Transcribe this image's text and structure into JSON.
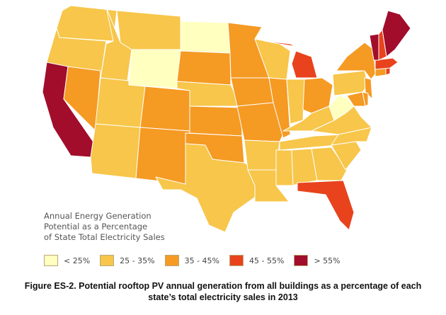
{
  "legend": {
    "title_lines": [
      "Annual Energy Generation",
      "Potential as a Percentage",
      "of State Total Electricity Sales"
    ],
    "bins": [
      {
        "label": "< 25%",
        "color": "#ffffc0"
      },
      {
        "label": "25 - 35%",
        "color": "#f7c64a"
      },
      {
        "label": "35 - 45%",
        "color": "#f59a23"
      },
      {
        "label": "45 - 55%",
        "color": "#e8431d"
      },
      {
        "label": "> 55%",
        "color": "#a10d2b"
      }
    ]
  },
  "caption": {
    "line1": "Figure ES-2. Potential rooftop PV annual generation from all buildings as a percentage of each",
    "line2": "state’s total electricity sales in 2013"
  },
  "states": {
    "washington": 1,
    "oregon": 1,
    "california": 4,
    "idaho": 1,
    "nevada": 2,
    "montana": 1,
    "wyoming": 0,
    "utah": 1,
    "arizona": 1,
    "colorado": 2,
    "new-mexico": 2,
    "north-dakota": 0,
    "south-dakota": 2,
    "nebraska": 1,
    "kansas": 2,
    "oklahoma": 2,
    "texas": 1,
    "minnesota": 2,
    "iowa": 2,
    "missouri": 2,
    "arkansas": 1,
    "louisiana": 1,
    "wisconsin": 1,
    "illinois": 2,
    "michigan": 3,
    "indiana": 1,
    "ohio": 2,
    "kentucky": 1,
    "tennessee": 1,
    "mississippi": 1,
    "alabama": 1,
    "georgia": 1,
    "florida": 3,
    "south-carolina": 1,
    "north-carolina": 1,
    "virginia": 1,
    "west-virginia": 0,
    "pennsylvania": 1,
    "new-york": 2,
    "new-jersey": 2,
    "maryland": 2,
    "delaware": 2,
    "connecticut": 2,
    "rhode-island": 3,
    "massachusetts": 3,
    "vermont": 4,
    "new-hampshire": 3,
    "maine": 4
  }
}
